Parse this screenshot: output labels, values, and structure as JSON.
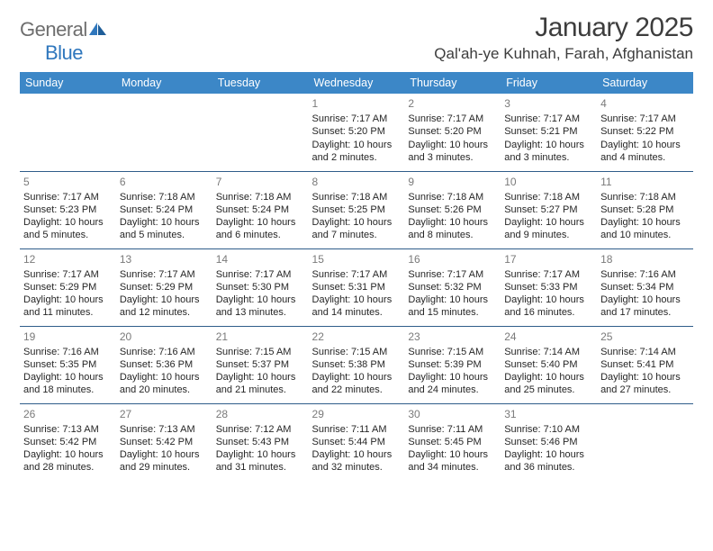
{
  "brand": {
    "part1": "General",
    "part2": "Blue"
  },
  "title": "January 2025",
  "location": "Qal'ah-ye Kuhnah, Farah, Afghanistan",
  "colors": {
    "header_bg": "#3c87c7",
    "header_fg": "#ffffff",
    "row_divider": "#2f5d8a",
    "daynum": "#7a7a7a",
    "text": "#262626",
    "logo_gray": "#6e6e6e",
    "logo_blue": "#2f77bd",
    "background": "#ffffff"
  },
  "typography": {
    "title_fontsize": 30,
    "location_fontsize": 17,
    "dayhead_fontsize": 12.5,
    "cell_fontsize": 11,
    "daynum_fontsize": 12
  },
  "day_headers": [
    "Sunday",
    "Monday",
    "Tuesday",
    "Wednesday",
    "Thursday",
    "Friday",
    "Saturday"
  ],
  "weeks": [
    [
      null,
      null,
      null,
      {
        "n": "1",
        "sunrise": "7:17 AM",
        "sunset": "5:20 PM",
        "daylight": "10 hours and 2 minutes."
      },
      {
        "n": "2",
        "sunrise": "7:17 AM",
        "sunset": "5:20 PM",
        "daylight": "10 hours and 3 minutes."
      },
      {
        "n": "3",
        "sunrise": "7:17 AM",
        "sunset": "5:21 PM",
        "daylight": "10 hours and 3 minutes."
      },
      {
        "n": "4",
        "sunrise": "7:17 AM",
        "sunset": "5:22 PM",
        "daylight": "10 hours and 4 minutes."
      }
    ],
    [
      {
        "n": "5",
        "sunrise": "7:17 AM",
        "sunset": "5:23 PM",
        "daylight": "10 hours and 5 minutes."
      },
      {
        "n": "6",
        "sunrise": "7:18 AM",
        "sunset": "5:24 PM",
        "daylight": "10 hours and 5 minutes."
      },
      {
        "n": "7",
        "sunrise": "7:18 AM",
        "sunset": "5:24 PM",
        "daylight": "10 hours and 6 minutes."
      },
      {
        "n": "8",
        "sunrise": "7:18 AM",
        "sunset": "5:25 PM",
        "daylight": "10 hours and 7 minutes."
      },
      {
        "n": "9",
        "sunrise": "7:18 AM",
        "sunset": "5:26 PM",
        "daylight": "10 hours and 8 minutes."
      },
      {
        "n": "10",
        "sunrise": "7:18 AM",
        "sunset": "5:27 PM",
        "daylight": "10 hours and 9 minutes."
      },
      {
        "n": "11",
        "sunrise": "7:18 AM",
        "sunset": "5:28 PM",
        "daylight": "10 hours and 10 minutes."
      }
    ],
    [
      {
        "n": "12",
        "sunrise": "7:17 AM",
        "sunset": "5:29 PM",
        "daylight": "10 hours and 11 minutes."
      },
      {
        "n": "13",
        "sunrise": "7:17 AM",
        "sunset": "5:29 PM",
        "daylight": "10 hours and 12 minutes."
      },
      {
        "n": "14",
        "sunrise": "7:17 AM",
        "sunset": "5:30 PM",
        "daylight": "10 hours and 13 minutes."
      },
      {
        "n": "15",
        "sunrise": "7:17 AM",
        "sunset": "5:31 PM",
        "daylight": "10 hours and 14 minutes."
      },
      {
        "n": "16",
        "sunrise": "7:17 AM",
        "sunset": "5:32 PM",
        "daylight": "10 hours and 15 minutes."
      },
      {
        "n": "17",
        "sunrise": "7:17 AM",
        "sunset": "5:33 PM",
        "daylight": "10 hours and 16 minutes."
      },
      {
        "n": "18",
        "sunrise": "7:16 AM",
        "sunset": "5:34 PM",
        "daylight": "10 hours and 17 minutes."
      }
    ],
    [
      {
        "n": "19",
        "sunrise": "7:16 AM",
        "sunset": "5:35 PM",
        "daylight": "10 hours and 18 minutes."
      },
      {
        "n": "20",
        "sunrise": "7:16 AM",
        "sunset": "5:36 PM",
        "daylight": "10 hours and 20 minutes."
      },
      {
        "n": "21",
        "sunrise": "7:15 AM",
        "sunset": "5:37 PM",
        "daylight": "10 hours and 21 minutes."
      },
      {
        "n": "22",
        "sunrise": "7:15 AM",
        "sunset": "5:38 PM",
        "daylight": "10 hours and 22 minutes."
      },
      {
        "n": "23",
        "sunrise": "7:15 AM",
        "sunset": "5:39 PM",
        "daylight": "10 hours and 24 minutes."
      },
      {
        "n": "24",
        "sunrise": "7:14 AM",
        "sunset": "5:40 PM",
        "daylight": "10 hours and 25 minutes."
      },
      {
        "n": "25",
        "sunrise": "7:14 AM",
        "sunset": "5:41 PM",
        "daylight": "10 hours and 27 minutes."
      }
    ],
    [
      {
        "n": "26",
        "sunrise": "7:13 AM",
        "sunset": "5:42 PM",
        "daylight": "10 hours and 28 minutes."
      },
      {
        "n": "27",
        "sunrise": "7:13 AM",
        "sunset": "5:42 PM",
        "daylight": "10 hours and 29 minutes."
      },
      {
        "n": "28",
        "sunrise": "7:12 AM",
        "sunset": "5:43 PM",
        "daylight": "10 hours and 31 minutes."
      },
      {
        "n": "29",
        "sunrise": "7:11 AM",
        "sunset": "5:44 PM",
        "daylight": "10 hours and 32 minutes."
      },
      {
        "n": "30",
        "sunrise": "7:11 AM",
        "sunset": "5:45 PM",
        "daylight": "10 hours and 34 minutes."
      },
      {
        "n": "31",
        "sunrise": "7:10 AM",
        "sunset": "5:46 PM",
        "daylight": "10 hours and 36 minutes."
      },
      null
    ]
  ],
  "labels": {
    "sunrise": "Sunrise:",
    "sunset": "Sunset:",
    "daylight": "Daylight:"
  }
}
